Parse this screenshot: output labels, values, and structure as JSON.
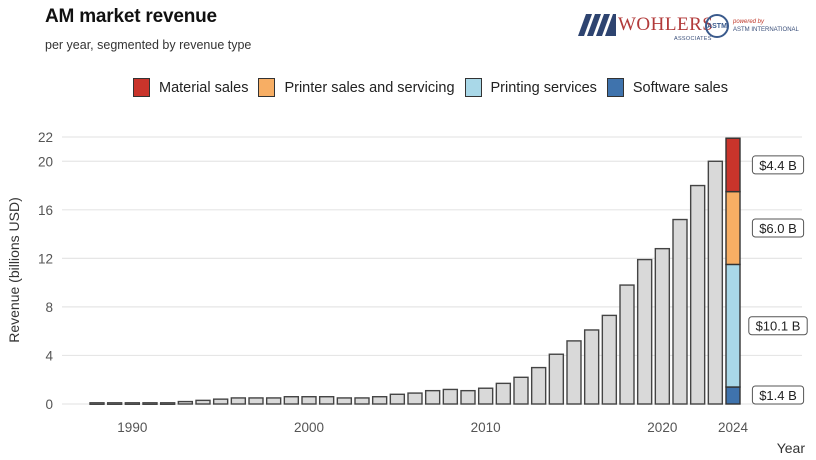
{
  "header": {
    "title": "AM market revenue",
    "subtitle": "per year, segmented by revenue type"
  },
  "logos": {
    "wohlers": {
      "name": "WOHLERS",
      "tagline": "ASSOCIATES"
    },
    "astm": {
      "seal": "ASTM",
      "powered_by": "powered by",
      "org": "ASTM INTERNATIONAL"
    }
  },
  "chart_data": {
    "type": "bar",
    "title": "AM market revenue",
    "subtitle": "per year, segmented by revenue type",
    "xlabel": "Year",
    "ylabel": "Revenue (billions USD)",
    "ylim": [
      0,
      22
    ],
    "yticks": [
      0,
      4,
      8,
      12,
      16,
      20,
      22
    ],
    "xticks": [
      1990,
      2000,
      2010,
      2020,
      2024
    ],
    "grid": true,
    "legend_position": "top",
    "legend": [
      {
        "name": "Material sales",
        "color": "#c9342b"
      },
      {
        "name": "Printer sales and servicing",
        "color": "#f7ae64"
      },
      {
        "name": "Printing services",
        "color": "#a9d8e8"
      },
      {
        "name": "Software sales",
        "color": "#3f73ad"
      }
    ],
    "total_bar_color": "#d9d9d9",
    "years": [
      1988,
      1989,
      1990,
      1991,
      1992,
      1993,
      1994,
      1995,
      1996,
      1997,
      1998,
      1999,
      2000,
      2001,
      2002,
      2003,
      2004,
      2005,
      2006,
      2007,
      2008,
      2009,
      2010,
      2011,
      2012,
      2013,
      2014,
      2015,
      2016,
      2017,
      2018,
      2019,
      2020,
      2021,
      2022,
      2023,
      2024
    ],
    "totals": [
      0.1,
      0.1,
      0.1,
      0.1,
      0.1,
      0.2,
      0.3,
      0.4,
      0.5,
      0.5,
      0.5,
      0.6,
      0.6,
      0.6,
      0.5,
      0.5,
      0.6,
      0.8,
      0.9,
      1.1,
      1.2,
      1.1,
      1.3,
      1.7,
      2.2,
      3.0,
      4.1,
      5.2,
      6.1,
      7.3,
      9.8,
      11.9,
      12.8,
      15.2,
      18.0,
      20.0,
      21.9
    ],
    "segmented_year": 2024,
    "segments": [
      {
        "name": "Software sales",
        "value": 1.4,
        "label": "$1.4 B",
        "color": "#3f73ad"
      },
      {
        "name": "Printing services",
        "value": 10.1,
        "label": "$10.1 B",
        "color": "#a9d8e8"
      },
      {
        "name": "Printer sales and servicing",
        "value": 6.0,
        "label": "$6.0 B",
        "color": "#f7ae64"
      },
      {
        "name": "Material sales",
        "value": 4.4,
        "label": "$4.4 B",
        "color": "#c9342b"
      }
    ]
  }
}
